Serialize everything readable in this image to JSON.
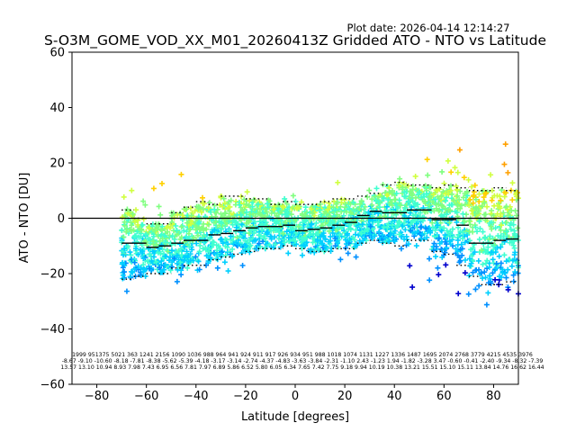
{
  "plot_date": "Plot date: 2026-04-14 12:14:27",
  "chart_data": {
    "type": "scatter",
    "title": "S-O3M_GOME_VOD_XX_M01_20260413Z Gridded ATO - NTO vs Latitude",
    "xlabel": "Latitude [degrees]",
    "ylabel": "ATO - NTO [DU]",
    "xlim": [
      -90,
      90
    ],
    "ylim": [
      -60,
      60
    ],
    "xticks": [
      -80,
      -60,
      -40,
      -20,
      0,
      20,
      40,
      60,
      80
    ],
    "yticks": [
      -60,
      -40,
      -20,
      0,
      20,
      40,
      60
    ],
    "grid": false,
    "zero_line": 0,
    "marker": "+",
    "colormap_colors": [
      "#0000cd",
      "#0090ff",
      "#00d0ff",
      "#40ffd0",
      "#80ff80",
      "#d0ff40",
      "#ffd000",
      "#ffa000"
    ],
    "bin_width": 5,
    "band_centers": [
      -67.5,
      -62.5,
      -57.5,
      -52.5,
      -47.5,
      -42.5,
      -37.5,
      -32.5,
      -27.5,
      -22.5,
      -17.5,
      -12.5,
      -7.5,
      -2.5,
      2.5,
      7.5,
      12.5,
      17.5,
      22.5,
      27.5,
      32.5,
      37.5,
      42.5,
      47.5,
      52.5,
      57.5,
      62.5,
      67.5,
      72.5,
      77.5,
      82.5,
      87.5
    ],
    "bin_means": [
      -9,
      -9,
      -10.5,
      -10,
      -9,
      -8,
      -8,
      -6,
      -5.5,
      -4.5,
      -3.5,
      -3,
      -3,
      -2.5,
      -4.5,
      -4,
      -3.5,
      -2.5,
      -1.5,
      1,
      2.5,
      2,
      2,
      3,
      3,
      -0.5,
      -0.5,
      -2.5,
      -9,
      -9,
      -8,
      -7.5
    ],
    "spread_upper": [
      3,
      0,
      -2,
      -2,
      2,
      4,
      6,
      5,
      8,
      8,
      7,
      7,
      5,
      6,
      5,
      5,
      6,
      7,
      7,
      8,
      9,
      12,
      13,
      12,
      12,
      11,
      12,
      11,
      10,
      10,
      11,
      10
    ],
    "spread_lower": [
      -22,
      -21,
      -20,
      -20,
      -18,
      -17,
      -17,
      -15,
      -14,
      -13,
      -12,
      -11,
      -11,
      -10,
      -11,
      -12,
      -12,
      -11,
      -11,
      -9,
      -8,
      -9,
      -10,
      -8,
      -8,
      -12,
      -13,
      -17,
      -21,
      -24,
      -24,
      -23
    ],
    "stats_row1": "1999 951375 5021 363 1241 2156 1090 1036 988 964 941 924 911 917 926 934 951 988 1018 1074 1131 1227 1336 1487 1695 2074 2768 3779 4215 4535 3976",
    "stats_row2": "-8.67 -9.10 -10.60 -8.18 -7.81 -8.38 -5.62 -5.39 -4.18 -3.17 -3.14 -2.74 -4.37 -4.83 -3.63 -3.84 -2.31 -1.10 2.43 -1.23 1.94 -1.82 -3.28 3.47 -0.60 -0.41 -2.40 -9.34 -8.32 -7.39",
    "stats_row3": "13.57 13.10 10.94 8.93 7.98 7.43 6.95 6.56 7.81 7.97 6.89 5.86 6.52 5.80 6.05 6.34 7.65 7.42 7.75 9.18 9.94 10.19 10.38 13.21 15.51 15.10 15.11 13.84 14.76 16.62 16.44"
  }
}
